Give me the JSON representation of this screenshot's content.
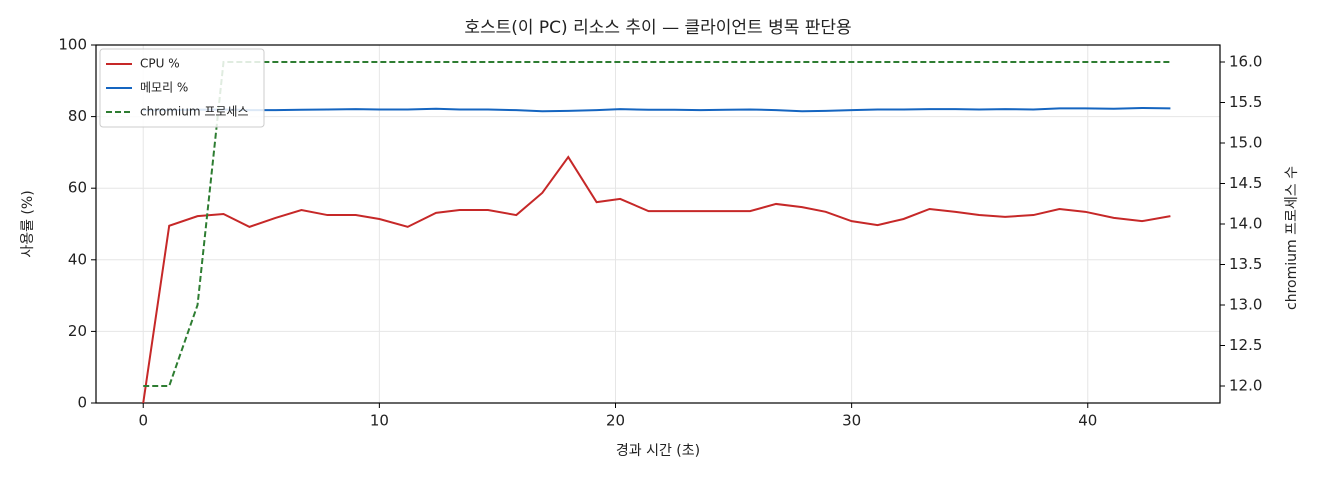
{
  "chart_data": {
    "type": "line",
    "title": "호스트(이 PC) 리소스 추이 — 클라이언트 병목 판단용",
    "xlabel": "경과 시간 (초)",
    "ylabel": "사용률 (%)",
    "y2label": "chromium 프로세스 수",
    "x": [
      0,
      1.1,
      2.3,
      3.4,
      4.5,
      5.6,
      6.7,
      7.8,
      9.0,
      10.0,
      11.2,
      12.4,
      13.4,
      14.6,
      15.8,
      16.9,
      18.0,
      19.2,
      20.2,
      21.4,
      22.5,
      23.6,
      24.7,
      25.7,
      26.8,
      27.9,
      28.9,
      30.0,
      31.1,
      32.2,
      33.3,
      34.4,
      35.4,
      36.5,
      37.7,
      38.8,
      39.9,
      41.1,
      42.3,
      43.5
    ],
    "series": [
      {
        "name": "CPU %",
        "color": "#c62828",
        "linestyle": "solid",
        "values": [
          0,
          49.5,
          52.2,
          52.8,
          49.2,
          51.7,
          53.9,
          52.5,
          52.5,
          51.4,
          49.2,
          53.1,
          53.9,
          53.9,
          52.5,
          58.7,
          68.7,
          56.1,
          57.0,
          53.6,
          53.6,
          53.6,
          53.6,
          53.6,
          55.6,
          54.7,
          53.4,
          50.8,
          49.7,
          51.4,
          54.2,
          53.4,
          52.5,
          52.0,
          52.5,
          54.2,
          53.4,
          51.7,
          50.8,
          52.2
        ]
      },
      {
        "name": "메모리 %",
        "color": "#1565c0",
        "linestyle": "solid",
        "values": [
          81.8,
          81.8,
          81.9,
          82.0,
          81.8,
          81.8,
          81.9,
          82.0,
          82.1,
          82.0,
          82.0,
          82.2,
          82.0,
          82.0,
          81.8,
          81.5,
          81.6,
          81.8,
          82.1,
          81.9,
          81.9,
          81.8,
          81.9,
          82.0,
          81.8,
          81.5,
          81.6,
          81.8,
          82.0,
          82.0,
          82.1,
          82.1,
          82.0,
          82.1,
          82.0,
          82.3,
          82.3,
          82.2,
          82.4,
          82.3
        ]
      },
      {
        "name": "chromium 프로세스",
        "color": "#2e7d32",
        "linestyle": "dashed",
        "axis": "y2",
        "values": [
          12,
          12,
          13,
          16,
          16,
          16,
          16,
          16,
          16,
          16,
          16,
          16,
          16,
          16,
          16,
          16,
          16,
          16,
          16,
          16,
          16,
          16,
          16,
          16,
          16,
          16,
          16,
          16,
          16,
          16,
          16,
          16,
          16,
          16,
          16,
          16,
          16,
          16,
          16,
          16
        ]
      }
    ],
    "xlim": [
      -2,
      45.6
    ],
    "xticks": [
      0,
      10,
      20,
      30,
      40
    ],
    "ylim": [
      0,
      100
    ],
    "yticks": [
      0,
      20,
      40,
      60,
      80,
      100
    ],
    "y2lim": [
      11.79,
      16.21
    ],
    "y2ticks": [
      {
        "value": 12,
        "label": "12.0"
      },
      {
        "value": 12.5,
        "label": "12.5"
      },
      {
        "value": 13,
        "label": "13.0"
      },
      {
        "value": 13.5,
        "label": "13.5"
      },
      {
        "value": 14,
        "label": "14.0"
      },
      {
        "value": 14.5,
        "label": "14.5"
      },
      {
        "value": 15,
        "label": "15.0"
      },
      {
        "value": 15.5,
        "label": "15.5"
      },
      {
        "value": 16,
        "label": "16.0"
      }
    ],
    "grid": true,
    "legend_loc": "upper left"
  }
}
